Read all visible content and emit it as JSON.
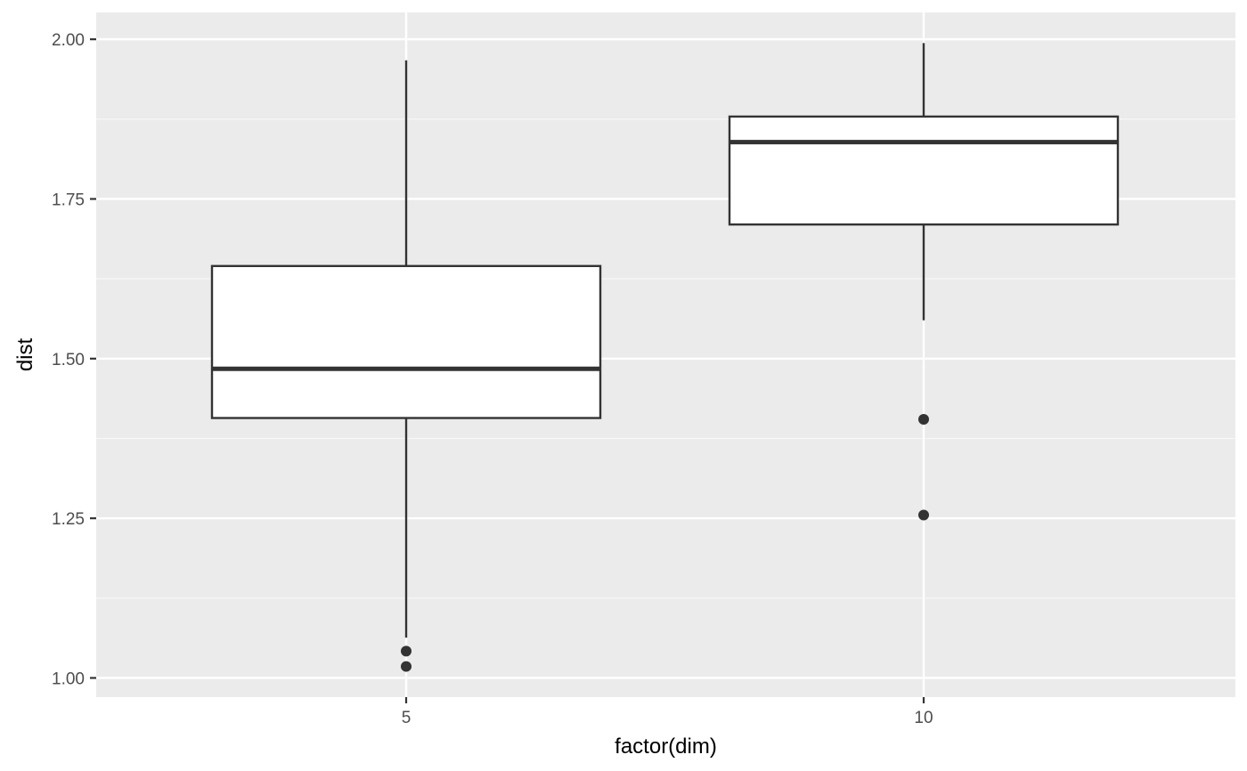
{
  "chart_data": {
    "type": "boxplot",
    "title": "",
    "xlabel": "factor(dim)",
    "ylabel": "dist",
    "categories": [
      "5",
      "10"
    ],
    "ylim": [
      0.97,
      2.042
    ],
    "y_ticks": [
      1.0,
      1.25,
      1.5,
      1.75,
      2.0
    ],
    "y_tick_labels": [
      "1.00",
      "1.25",
      "1.50",
      "1.75",
      "2.00"
    ],
    "grid": true,
    "boxes": [
      {
        "category": "5",
        "whisker_low": 1.063,
        "q1": 1.407,
        "median": 1.484,
        "q3": 1.645,
        "whisker_high": 1.967,
        "outliers": [
          1.042,
          1.018
        ]
      },
      {
        "category": "10",
        "whisker_low": 1.56,
        "q1": 1.71,
        "median": 1.839,
        "q3": 1.879,
        "whisker_high": 1.994,
        "outliers": [
          1.405,
          1.255
        ]
      }
    ],
    "colors": {
      "panel_background": "#ebebeb",
      "grid_major": "#ffffff",
      "grid_minor": "#f7f7f7",
      "box_fill": "#ffffff",
      "box_line": "#333333",
      "outlier": "#333333",
      "tick_text": "#4d4d4d",
      "axis_title": "#000000"
    }
  }
}
